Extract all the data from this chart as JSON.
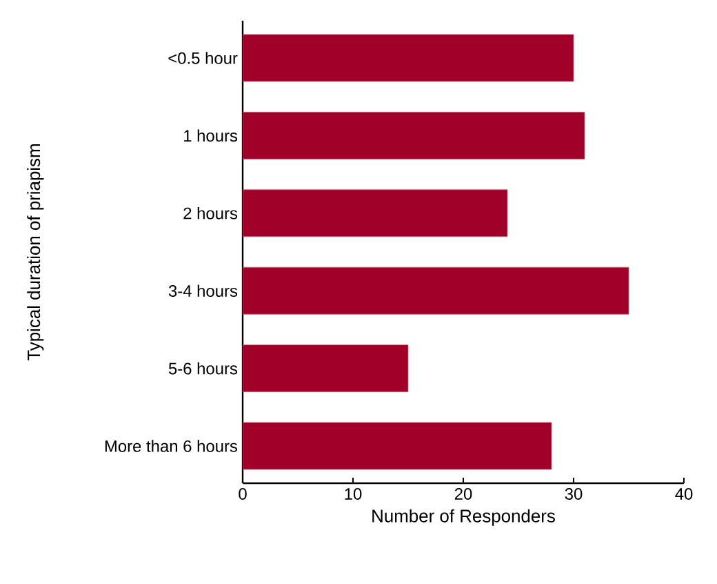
{
  "chart_data": {
    "type": "bar",
    "orientation": "horizontal",
    "xlabel": "Number of Responders",
    "ylabel": "Typical duration of priapism",
    "categories": [
      "<0.5 hour",
      "1 hours",
      "2 hours",
      "3-4 hours",
      "5-6 hours",
      "More than 6 hours"
    ],
    "values": [
      30,
      31,
      24,
      35,
      15,
      28
    ],
    "color": "#a10028",
    "xlim": [
      0,
      40
    ],
    "xticks": [
      0,
      10,
      20,
      30,
      40
    ]
  }
}
